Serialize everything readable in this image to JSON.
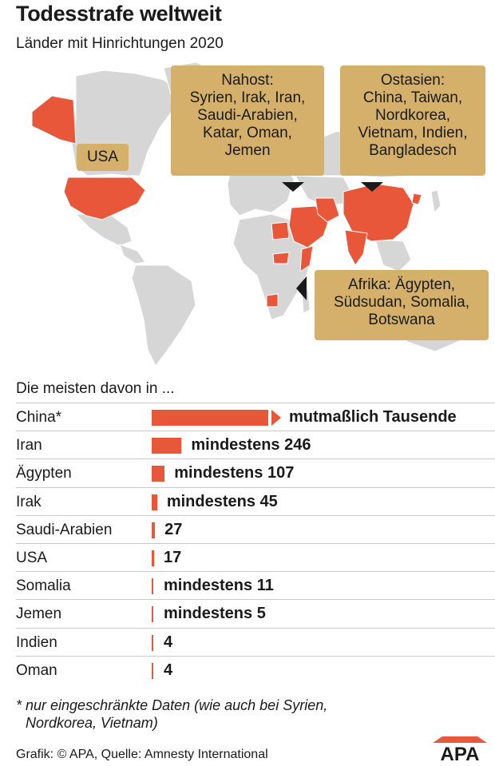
{
  "title": "Todesstrafe weltweit",
  "subtitle": "Länder mit Hinrichtungen 2020",
  "map": {
    "callouts": {
      "usa": [
        "USA"
      ],
      "nahost": [
        "Nahost:",
        "Syrien, Irak, Iran,",
        "Saudi-Arabien,",
        "Katar, Oman,",
        "Jemen"
      ],
      "ostasien": [
        "Ostasien:",
        "China, Taiwan,",
        "Nordkorea,",
        "Vietnam, Indien,",
        "Bangladesch"
      ],
      "afrika": [
        "Afrika: Ägypten,",
        "Südsudan, Somalia,",
        "Botswana"
      ]
    },
    "colors": {
      "land": "#d6d6d6",
      "highlight": "#e8573a",
      "callout": "#d4b06a"
    }
  },
  "chart_data": {
    "type": "bar",
    "title": "Die meisten davon in ...",
    "categories": [
      "China*",
      "Iran",
      "Ägypten",
      "Irak",
      "Saudi-Arabien",
      "USA",
      "Somalia",
      "Jemen",
      "Indien",
      "Oman"
    ],
    "values": [
      null,
      246,
      107,
      45,
      27,
      17,
      11,
      5,
      4,
      4
    ],
    "labels": [
      "mutmaßlich Tausende",
      "mindestens 246",
      "mindestens 107",
      "mindestens 45",
      "27",
      "17",
      "mindestens 11",
      "mindestens 5",
      "4",
      "4"
    ],
    "bar_color": "#e8573a"
  },
  "footnote": [
    "* nur eingeschränkte Daten (wie auch bei Syrien,",
    "Nordkorea, Vietnam)"
  ],
  "source": "Grafik: © APA, Quelle: Amnesty International",
  "logo_text": "APA"
}
